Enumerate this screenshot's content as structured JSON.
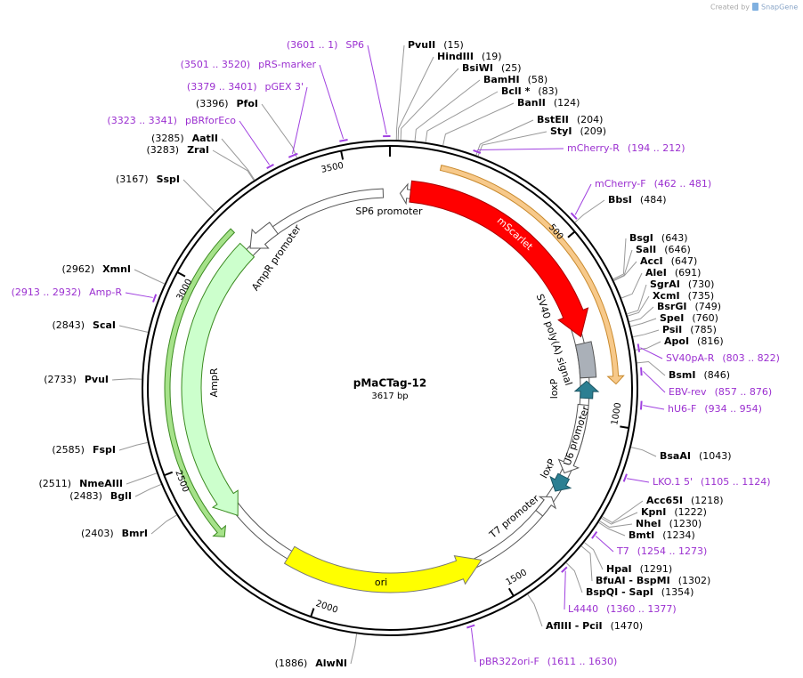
{
  "watermark": {
    "prefix": "Created by",
    "brand": "SnapGene"
  },
  "plasmid": {
    "name": "pMaCTag-12",
    "length": "3617 bp"
  },
  "ticks": [
    500,
    1000,
    1500,
    2000,
    2500,
    3000,
    3500
  ],
  "enzymes": [
    {
      "name": "PvuII",
      "site": "(15)"
    },
    {
      "name": "HindIII",
      "site": "(19)"
    },
    {
      "name": "BsiWI",
      "site": "(25)"
    },
    {
      "name": "BamHI",
      "site": "(58)"
    },
    {
      "name": "BclI *",
      "site": "(83)"
    },
    {
      "name": "BanII",
      "site": "(124)"
    },
    {
      "name": "BstEII",
      "site": "(204)"
    },
    {
      "name": "StyI",
      "site": "(209)"
    },
    {
      "name": "BbsI",
      "site": "(484)"
    },
    {
      "name": "BsgI",
      "site": "(643)"
    },
    {
      "name": "SalI",
      "site": "(646)"
    },
    {
      "name": "AccI",
      "site": "(647)"
    },
    {
      "name": "AleI",
      "site": "(691)"
    },
    {
      "name": "SgrAI",
      "site": "(730)"
    },
    {
      "name": "XcmI",
      "site": "(735)"
    },
    {
      "name": "BsrGI",
      "site": "(749)"
    },
    {
      "name": "SpeI",
      "site": "(760)"
    },
    {
      "name": "PsiI",
      "site": "(785)"
    },
    {
      "name": "ApoI",
      "site": "(816)"
    },
    {
      "name": "BsmI",
      "site": "(846)"
    },
    {
      "name": "BsaAI",
      "site": "(1043)"
    },
    {
      "name": "Acc65I",
      "site": "(1218)"
    },
    {
      "name": "KpnI",
      "site": "(1222)"
    },
    {
      "name": "NheI",
      "site": "(1230)"
    },
    {
      "name": "BmtI",
      "site": "(1234)"
    },
    {
      "name": "HpaI",
      "site": "(1291)"
    },
    {
      "name": "BfuAI - BspMI",
      "site": "(1302)"
    },
    {
      "name": "BspQI - SapI",
      "site": "(1354)"
    },
    {
      "name": "AflIII - PciI",
      "site": "(1470)"
    },
    {
      "name": "AlwNI",
      "site": "(1886)"
    },
    {
      "name": "BmrI",
      "site": "(2403)"
    },
    {
      "name": "BglI",
      "site": "(2483)"
    },
    {
      "name": "NmeAIII",
      "site": "(2511)"
    },
    {
      "name": "FspI",
      "site": "(2585)"
    },
    {
      "name": "PvuI",
      "site": "(2733)"
    },
    {
      "name": "ScaI",
      "site": "(2843)"
    },
    {
      "name": "XmnI",
      "site": "(2962)"
    },
    {
      "name": "SspI",
      "site": "(3167)"
    },
    {
      "name": "ZraI",
      "site": "(3283)"
    },
    {
      "name": "AatII",
      "site": "(3285)"
    },
    {
      "name": "PfoI",
      "site": "(3396)"
    }
  ],
  "primers": [
    {
      "name": "SP6",
      "range": "(3601 .. 1)"
    },
    {
      "name": "pRS-marker",
      "range": "(3501 .. 3520)"
    },
    {
      "name": "pGEX 3'",
      "range": "(3379 .. 3401)"
    },
    {
      "name": "pBRforEco",
      "range": "(3323 .. 3341)"
    },
    {
      "name": "mCherry-R",
      "range": "(194 .. 212)"
    },
    {
      "name": "mCherry-F",
      "range": "(462 .. 481)"
    },
    {
      "name": "SV40pA-R",
      "range": "(803 .. 822)"
    },
    {
      "name": "EBV-rev",
      "range": "(857 .. 876)"
    },
    {
      "name": "hU6-F",
      "range": "(934 .. 954)"
    },
    {
      "name": "LKO.1 5'",
      "range": "(1105 .. 1124)"
    },
    {
      "name": "T7",
      "range": "(1254 .. 1273)"
    },
    {
      "name": "L4440",
      "range": "(1360 .. 1377)"
    },
    {
      "name": "pBR322ori-F",
      "range": "(1611 .. 1630)"
    },
    {
      "name": "Amp-R",
      "range": "(2913 .. 2932)"
    }
  ],
  "features": [
    {
      "label": "SP6 promoter"
    },
    {
      "label": "mScarlet"
    },
    {
      "label": "SV40 poly(A) signal"
    },
    {
      "label": "loxP"
    },
    {
      "label": "U6 promoter"
    },
    {
      "label": "loxP"
    },
    {
      "label": "T7 promoter"
    },
    {
      "label": "ori"
    },
    {
      "label": "AmpR"
    },
    {
      "label": "AmpR promoter"
    }
  ]
}
